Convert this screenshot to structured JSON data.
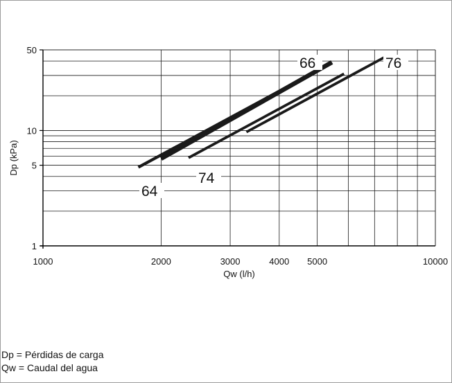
{
  "chart_data": {
    "type": "line",
    "title": "",
    "xlabel": "Qw (l/h)",
    "ylabel": "Dp (kPa)",
    "xscale": "log",
    "yscale": "log",
    "xlim": [
      1000,
      10000
    ],
    "ylim": [
      1,
      50
    ],
    "grid": true,
    "x_tick_labels": [
      "1000",
      "2000",
      "3000",
      "4000",
      "5000",
      "10000"
    ],
    "x_tick_values": [
      1000,
      2000,
      3000,
      4000,
      5000,
      10000
    ],
    "y_tick_labels": [
      "1",
      "5",
      "10",
      "50"
    ],
    "y_tick_values": [
      1,
      5,
      10,
      50
    ],
    "series": [
      {
        "name": "64",
        "x": [
          1750,
          4250
        ],
        "y": [
          4.8,
          24.5
        ]
      },
      {
        "name": "66",
        "x": [
          2000,
          5450
        ],
        "y": [
          5.7,
          39
        ]
      },
      {
        "name": "74",
        "x": [
          2350,
          5850
        ],
        "y": [
          5.8,
          31
        ]
      },
      {
        "name": "76",
        "x": [
          3300,
          7500
        ],
        "y": [
          9.7,
          44
        ]
      }
    ],
    "line_color": "#1a1a1a"
  },
  "legend_notes": [
    "Dp = Pérdidas de carga",
    "Qw = Caudal del agua"
  ]
}
